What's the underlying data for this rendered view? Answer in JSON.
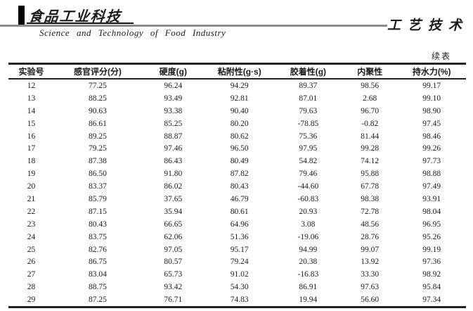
{
  "masthead": {
    "journal_name_cn": "食品工业科技",
    "journal_name_en": "Science and Technology of Food Industry",
    "section_title": "工艺技术"
  },
  "table": {
    "continued_label": "续表",
    "columns": [
      "实验号",
      "感官评分(分)",
      "硬度(g)",
      "粘附性(g·s)",
      "胶着性(g)",
      "内聚性",
      "持水力(%)"
    ],
    "rows": [
      [
        "12",
        "77.25",
        "96.24",
        "94.29",
        "89.37",
        "98.56",
        "99.17"
      ],
      [
        "13",
        "88.25",
        "93.49",
        "92.81",
        "87.01",
        "2.68",
        "99.10"
      ],
      [
        "14",
        "90.63",
        "93.38",
        "90.40",
        "79.63",
        "96.70",
        "98.90"
      ],
      [
        "15",
        "86.61",
        "85.25",
        "80.20",
        "-78.85",
        "-0.82",
        "97.45"
      ],
      [
        "16",
        "89.25",
        "88.87",
        "80.62",
        "75.36",
        "81.44",
        "98.46"
      ],
      [
        "17",
        "79.25",
        "97.46",
        "96.50",
        "97.95",
        "99.28",
        "99.26"
      ],
      [
        "18",
        "87.38",
        "86.43",
        "80.49",
        "54.82",
        "74.12",
        "97.73"
      ],
      [
        "19",
        "86.50",
        "91.80",
        "87.82",
        "79.46",
        "95.88",
        "98.88"
      ],
      [
        "20",
        "83.37",
        "86.02",
        "80.43",
        "-44.60",
        "67.78",
        "97.49"
      ],
      [
        "21",
        "85.79",
        "37.65",
        "46.79",
        "-60.83",
        "98.38",
        "93.91"
      ],
      [
        "22",
        "87.15",
        "35.94",
        "80.61",
        "20.93",
        "72.78",
        "98.04"
      ],
      [
        "23",
        "80.43",
        "66.65",
        "64.96",
        "3.08",
        "48.56",
        "96.95"
      ],
      [
        "24",
        "83.75",
        "62.06",
        "51.36",
        "-19.06",
        "28.76",
        "95.26"
      ],
      [
        "25",
        "82.76",
        "97.05",
        "95.17",
        "94.99",
        "99.07",
        "99.19"
      ],
      [
        "26",
        "86.75",
        "80.57",
        "79.24",
        "20.38",
        "13.92",
        "97.36"
      ],
      [
        "27",
        "83.04",
        "65.73",
        "91.02",
        "-16.83",
        "33.30",
        "98.92"
      ],
      [
        "28",
        "88.75",
        "93.42",
        "54.30",
        "86.91",
        "97.63",
        "95.84"
      ],
      [
        "29",
        "87.25",
        "76.71",
        "74.83",
        "19.94",
        "56.60",
        "97.34"
      ]
    ]
  },
  "colors": {
    "background": "#ffffff",
    "text": "#1a1a1a",
    "masthead_rule": "#8c8c8c",
    "table_line": "#222222"
  }
}
